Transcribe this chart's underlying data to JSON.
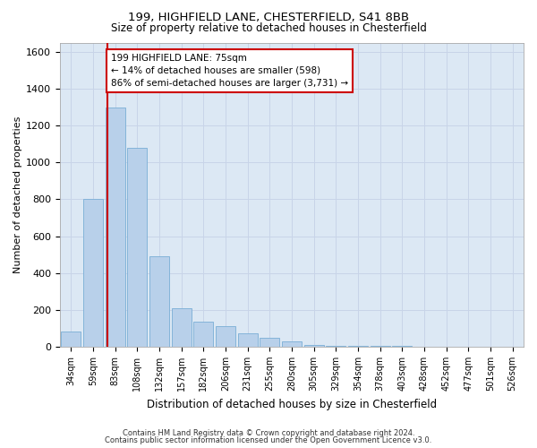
{
  "title_line1": "199, HIGHFIELD LANE, CHESTERFIELD, S41 8BB",
  "title_line2": "Size of property relative to detached houses in Chesterfield",
  "xlabel": "Distribution of detached houses by size in Chesterfield",
  "ylabel": "Number of detached properties",
  "bar_labels": [
    "34sqm",
    "59sqm",
    "83sqm",
    "108sqm",
    "132sqm",
    "157sqm",
    "182sqm",
    "206sqm",
    "231sqm",
    "255sqm",
    "280sqm",
    "305sqm",
    "329sqm",
    "354sqm",
    "378sqm",
    "403sqm",
    "428sqm",
    "452sqm",
    "477sqm",
    "501sqm",
    "526sqm"
  ],
  "bar_values": [
    80,
    800,
    1300,
    1080,
    490,
    210,
    135,
    110,
    75,
    50,
    30,
    10,
    5,
    5,
    5,
    5,
    0,
    0,
    0,
    0,
    0
  ],
  "bar_color": "#b8d0ea",
  "bar_edge_color": "#7aaed6",
  "grid_color": "#c8d4e8",
  "background_color": "#dce8f4",
  "vline_color": "#cc0000",
  "annotation_text": "199 HIGHFIELD LANE: 75sqm\n← 14% of detached houses are smaller (598)\n86% of semi-detached houses are larger (3,731) →",
  "annotation_box_facecolor": "#ffffff",
  "annotation_box_edgecolor": "#cc0000",
  "ylim": [
    0,
    1650
  ],
  "yticks": [
    0,
    200,
    400,
    600,
    800,
    1000,
    1200,
    1400,
    1600
  ],
  "fig_facecolor": "#ffffff",
  "footer_line1": "Contains HM Land Registry data © Crown copyright and database right 2024.",
  "footer_line2": "Contains public sector information licensed under the Open Government Licence v3.0."
}
